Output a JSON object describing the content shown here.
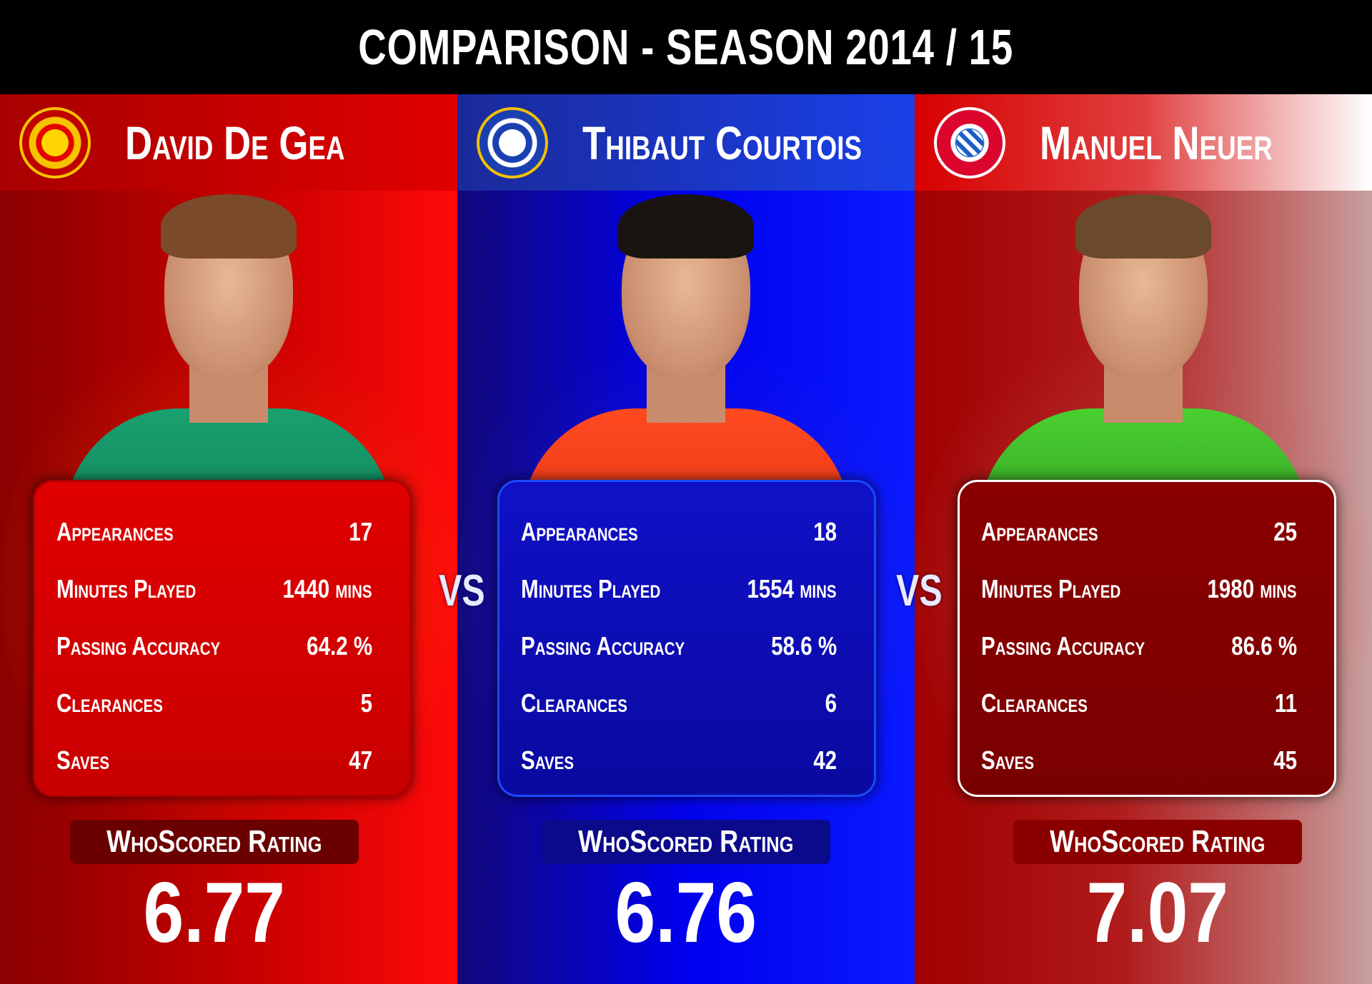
{
  "title": "COMPARISON - SEASON 2014 / 15",
  "vs_label": "VS",
  "rating_label": "WhoScored Rating",
  "players": [
    {
      "name": "David De Gea",
      "club_crest": "manchester-united-crest",
      "stats": [
        {
          "label": "Appearances",
          "value": "17"
        },
        {
          "label": "Minutes Played",
          "value": "1440 mins"
        },
        {
          "label": "Passing Accuracy",
          "value": "64.2 %"
        },
        {
          "label": "Clearances",
          "value": "5"
        },
        {
          "label": "Saves",
          "value": "47"
        }
      ],
      "rating": "6.77"
    },
    {
      "name": "Thibaut Courtois",
      "club_crest": "chelsea-crest",
      "stats": [
        {
          "label": "Appearances",
          "value": "18"
        },
        {
          "label": "Minutes Played",
          "value": "1554 mins"
        },
        {
          "label": "Passing Accuracy",
          "value": "58.6 %"
        },
        {
          "label": "Clearances",
          "value": "6"
        },
        {
          "label": "Saves",
          "value": "42"
        }
      ],
      "rating": "6.76"
    },
    {
      "name": "Manuel Neuer",
      "club_crest": "fc-bayern-crest",
      "stats": [
        {
          "label": "Appearances",
          "value": "25"
        },
        {
          "label": "Minutes Played",
          "value": "1980 mins"
        },
        {
          "label": "Passing Accuracy",
          "value": "86.6 %"
        },
        {
          "label": "Clearances",
          "value": "11"
        },
        {
          "label": "Saves",
          "value": "45"
        }
      ],
      "rating": "7.07"
    }
  ],
  "colors": {
    "manchester_united": "#e00000",
    "chelsea": "#0a0ac8",
    "bayern": "#8a0000"
  }
}
